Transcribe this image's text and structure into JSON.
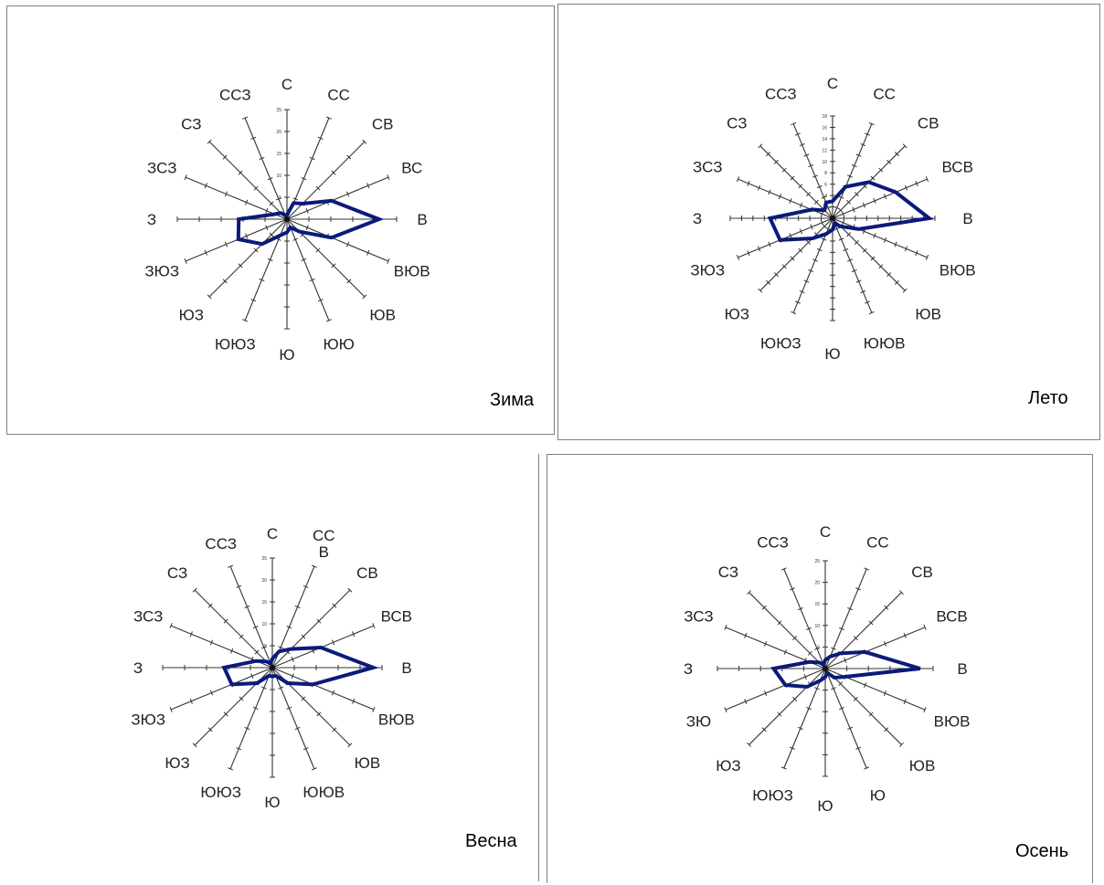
{
  "style": {
    "rose_color": "#0b1a7a",
    "axis_color": "#333333"
  },
  "chart_data": [
    {
      "type": "radar",
      "title": "Зима",
      "ticks": [
        "5",
        "10",
        "15",
        "20",
        "25"
      ],
      "rmax": 25,
      "directions": [
        "С",
        "СС",
        "СВ",
        "ВС",
        "В",
        "ВЮВ",
        "ЮВ",
        "ЮЮ",
        "Ю",
        "ЮЮЗ",
        "ЮЗ",
        "ЗЮЗ",
        "З",
        "ЗСЗ",
        "СЗ",
        "ССЗ"
      ],
      "values": [
        1,
        4,
        5,
        11,
        21,
        11,
        4,
        2,
        3,
        4,
        8,
        12,
        11,
        3,
        2,
        1
      ]
    },
    {
      "type": "radar",
      "title": "Лето",
      "ticks": [
        "2",
        "4",
        "6",
        "8",
        "10",
        "12",
        "14",
        "16",
        "18"
      ],
      "rmax": 18,
      "directions": [
        "С",
        "СС",
        "СВ",
        "ВСВ",
        "В",
        "ВЮВ",
        "ЮВ",
        "ЮЮВ",
        "Ю",
        "ЮЮЗ",
        "ЮЗ",
        "ЗЮЗ",
        "З",
        "ЗСЗ",
        "СЗ",
        "ССЗ"
      ],
      "values": [
        3,
        6,
        9,
        12,
        17,
        5,
        2,
        1,
        2,
        3,
        5,
        10,
        11,
        4,
        2,
        3
      ]
    },
    {
      "type": "radar",
      "title": "Весна",
      "ticks": [
        "5",
        "10",
        "15",
        "20",
        "25"
      ],
      "rmax": 25,
      "directions": [
        "С",
        "СС\nВ",
        "СВ",
        "ВСВ",
        "В",
        "ВЮВ",
        "ЮВ",
        "ЮЮВ",
        "Ю",
        "ЮЮЗ",
        "ЮЗ",
        "ЗЮЗ",
        "З",
        "ЗСЗ",
        "СЗ",
        "ССЗ"
      ],
      "values": [
        2,
        4,
        6,
        12,
        23,
        10,
        5,
        2,
        2,
        2,
        5,
        10,
        11,
        4,
        2,
        1
      ]
    },
    {
      "type": "radar",
      "title": "Осень",
      "ticks": [
        "5",
        "10",
        "15",
        "20",
        "25"
      ],
      "rmax": 25,
      "directions": [
        "С",
        "СС",
        "СВ",
        "ВСВ",
        "В",
        "ВЮВ",
        "ЮВ",
        "Ю",
        "Ю",
        "ЮЮЗ",
        "ЮЗ",
        "ЗЮ",
        "З",
        "ЗСЗ",
        "СЗ",
        "ССЗ"
      ],
      "values": [
        2,
        3,
        5,
        10,
        22,
        5,
        3,
        1,
        2,
        3,
        6,
        10,
        12,
        4,
        2,
        1
      ]
    }
  ]
}
